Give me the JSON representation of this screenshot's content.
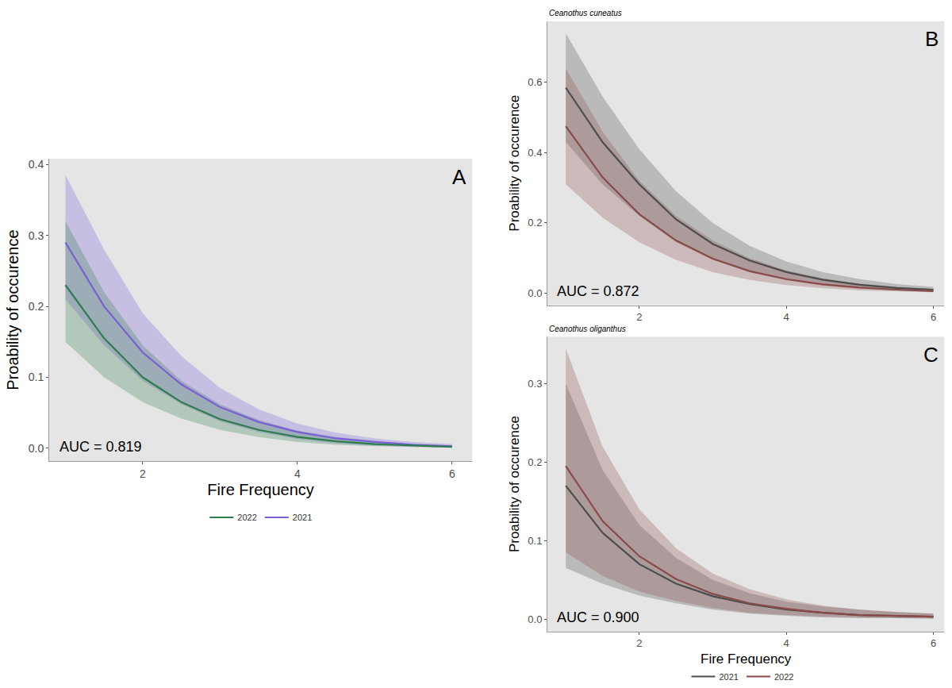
{
  "chart_data": [
    {
      "type": "line",
      "label": "A",
      "annotations": [
        "AUC = 0.819"
      ],
      "xlabel": "Fire Frequency",
      "ylabel": "Proability of occurence",
      "x": [
        1,
        1.5,
        2,
        2.5,
        3,
        3.5,
        4,
        4.5,
        5,
        5.5,
        6
      ],
      "xlim": [
        0.79,
        6.26
      ],
      "xticks": [
        2,
        4,
        6
      ],
      "ylim": [
        -0.018,
        0.408
      ],
      "yticks": [
        {
          "value": 0,
          "label": "0.0"
        },
        0.1,
        0.2,
        0.3,
        0.4
      ],
      "grid": false,
      "legend": "bottom",
      "series": [
        {
          "name": "2021",
          "color": "#7b5fd6",
          "values": [
            0.29,
            0.2,
            0.135,
            0.09,
            0.058,
            0.037,
            0.023,
            0.014,
            0.009,
            0.005,
            0.003
          ],
          "upper": [
            0.385,
            0.28,
            0.19,
            0.13,
            0.085,
            0.055,
            0.035,
            0.022,
            0.014,
            0.009,
            0.006
          ],
          "lower": [
            0.21,
            0.145,
            0.095,
            0.062,
            0.038,
            0.023,
            0.013,
            0.007,
            0.004,
            0.002,
            0.001
          ]
        },
        {
          "name": "2022",
          "color": "#2e7d4f",
          "values": [
            0.23,
            0.155,
            0.1,
            0.065,
            0.041,
            0.026,
            0.016,
            0.01,
            0.006,
            0.004,
            0.002
          ],
          "upper": [
            0.32,
            0.22,
            0.145,
            0.095,
            0.062,
            0.04,
            0.025,
            0.016,
            0.01,
            0.006,
            0.004
          ],
          "lower": [
            0.15,
            0.1,
            0.065,
            0.042,
            0.026,
            0.016,
            0.009,
            0.005,
            0.003,
            0.002,
            0.001
          ]
        }
      ]
    },
    {
      "type": "line",
      "label": "B",
      "title": "Ceanothus cuneatus",
      "annotations": [
        "AUC = 0.872"
      ],
      "ylabel": "Proability of occurence",
      "x": [
        1,
        1.5,
        2,
        2.5,
        3,
        3.5,
        4,
        4.5,
        5,
        5.5,
        6
      ],
      "xlim": [
        0.75,
        6.15
      ],
      "xticks": [
        2,
        4,
        6
      ],
      "ylim": [
        -0.034,
        0.774
      ],
      "yticks": [
        {
          "value": 0,
          "label": "0.0"
        },
        0.2,
        0.4,
        0.6
      ],
      "grid": false,
      "series": [
        {
          "name": "2021",
          "color": "#4d4d4d",
          "values": [
            0.585,
            0.43,
            0.31,
            0.21,
            0.14,
            0.093,
            0.06,
            0.038,
            0.024,
            0.015,
            0.01
          ],
          "upper": [
            0.74,
            0.56,
            0.41,
            0.29,
            0.2,
            0.135,
            0.09,
            0.06,
            0.04,
            0.026,
            0.018
          ],
          "lower": [
            0.43,
            0.31,
            0.22,
            0.145,
            0.095,
            0.06,
            0.037,
            0.022,
            0.013,
            0.008,
            0.005
          ]
        },
        {
          "name": "2022",
          "color": "#8b4a4a",
          "values": [
            0.475,
            0.33,
            0.225,
            0.15,
            0.098,
            0.063,
            0.04,
            0.025,
            0.016,
            0.01,
            0.006
          ],
          "upper": [
            0.64,
            0.46,
            0.32,
            0.22,
            0.15,
            0.1,
            0.065,
            0.042,
            0.027,
            0.018,
            0.012
          ],
          "lower": [
            0.31,
            0.215,
            0.145,
            0.095,
            0.06,
            0.038,
            0.023,
            0.014,
            0.008,
            0.005,
            0.003
          ]
        }
      ]
    },
    {
      "type": "line",
      "label": "C",
      "title": "Ceanothus oliganthus",
      "annotations": [
        "AUC = 0.900"
      ],
      "xlabel": "Fire Frequency",
      "ylabel": "Proability of occurence",
      "x": [
        1,
        1.5,
        2,
        2.5,
        3,
        3.5,
        4,
        4.5,
        5,
        5.5,
        6
      ],
      "xlim": [
        0.75,
        6.15
      ],
      "xticks": [
        2,
        4,
        6
      ],
      "ylim": [
        -0.016,
        0.36
      ],
      "yticks": [
        {
          "value": 0,
          "label": "0.0"
        },
        0.1,
        0.2,
        0.3
      ],
      "grid": false,
      "legend": "bottom",
      "series": [
        {
          "name": "2021",
          "color": "#4d4d4d",
          "values": [
            0.17,
            0.11,
            0.07,
            0.045,
            0.029,
            0.019,
            0.012,
            0.008,
            0.005,
            0.004,
            0.003
          ],
          "upper": [
            0.3,
            0.19,
            0.12,
            0.078,
            0.05,
            0.033,
            0.022,
            0.016,
            0.012,
            0.009,
            0.007
          ],
          "lower": [
            0.065,
            0.045,
            0.03,
            0.02,
            0.012,
            0.007,
            0.004,
            0.002,
            0.001,
            0.001,
            0
          ]
        },
        {
          "name": "2022",
          "color": "#8b4a4a",
          "values": [
            0.195,
            0.125,
            0.08,
            0.051,
            0.032,
            0.02,
            0.013,
            0.008,
            0.005,
            0.004,
            0.003
          ],
          "upper": [
            0.345,
            0.22,
            0.14,
            0.09,
            0.058,
            0.038,
            0.025,
            0.017,
            0.012,
            0.009,
            0.007
          ],
          "lower": [
            0.085,
            0.055,
            0.035,
            0.023,
            0.014,
            0.008,
            0.005,
            0.003,
            0.002,
            0.001,
            0.001
          ]
        }
      ]
    }
  ]
}
